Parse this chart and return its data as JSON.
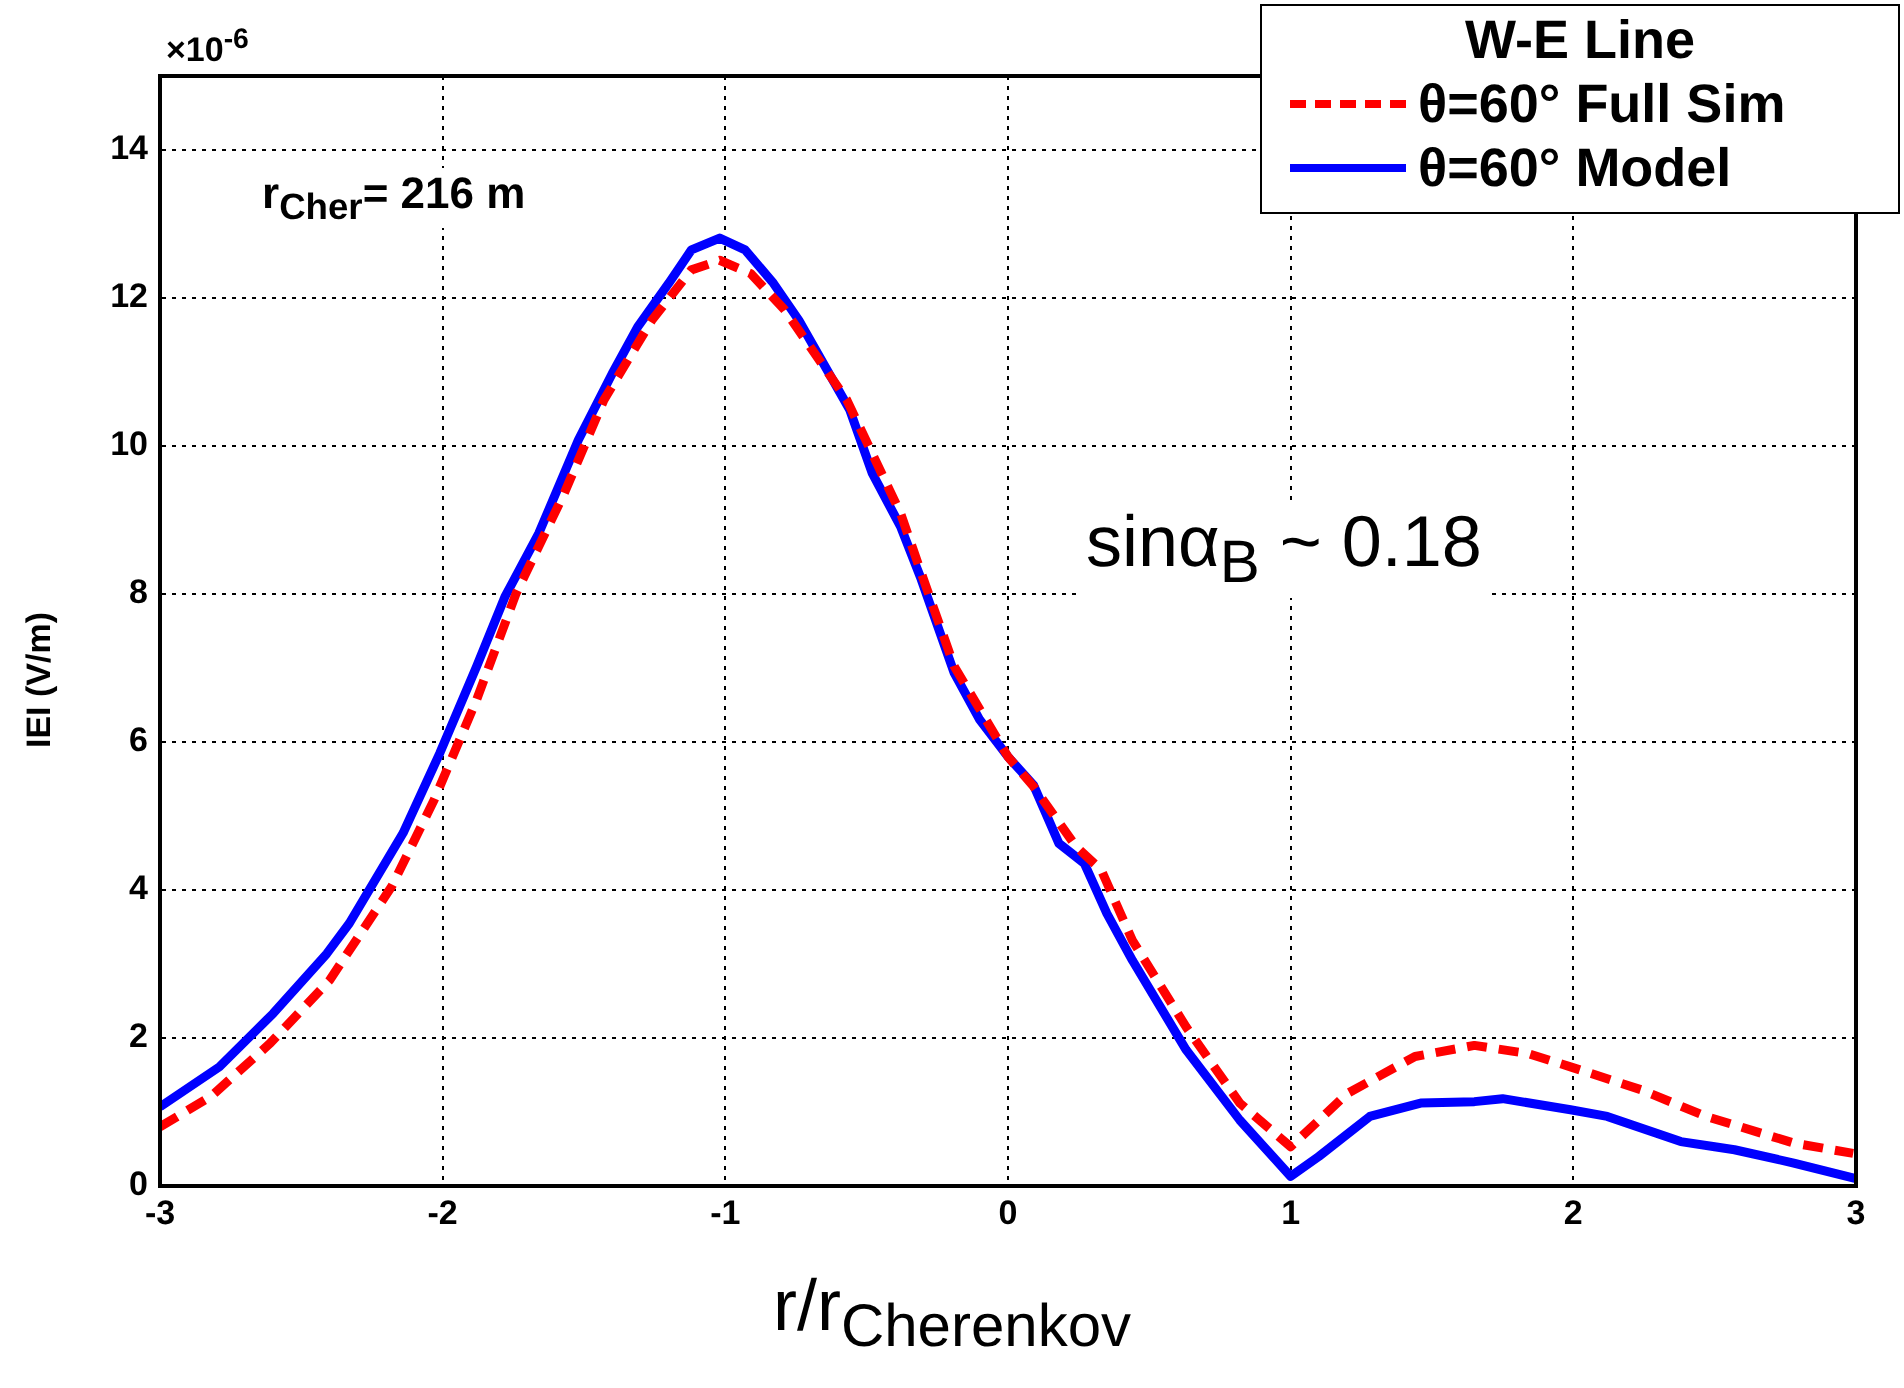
{
  "chart_data": {
    "type": "line",
    "xlabel": "r/r$_{Cherenkov}$",
    "ylabel": "IEI (V/m)",
    "legend_title": "W-E Line",
    "legend": "top right",
    "grid": true,
    "marker": "none",
    "xlim": [
      -3,
      3
    ],
    "xticks": [
      -3,
      -2,
      -1,
      0,
      1,
      2,
      3
    ],
    "ylim": [
      0,
      15
    ],
    "yticks": [
      0,
      2,
      4,
      6,
      8,
      10,
      12,
      14
    ],
    "annotations": [
      "×10$^{-6}$",
      "r$_{Cher}$= 216 m",
      "sinα$_{B}$ ~ 0.18"
    ],
    "series": [
      {
        "name": "θ=60° Full Sim",
        "color": "#ff0000",
        "line_style": "dashed",
        "x": [
          -3,
          -2.82,
          -2.61,
          -2.4,
          -2.18,
          -2.03,
          -1.88,
          -1.74,
          -1.57,
          -1.43,
          -1.26,
          -1.12,
          -1.02,
          -0.91,
          -0.79,
          -0.57,
          -0.38,
          -0.29,
          -0.19,
          0,
          0.09,
          0.24,
          0.33,
          0.44,
          0.63,
          0.82,
          1,
          1.2,
          1.44,
          1.65,
          1.84,
          1.99,
          2.24,
          2.47,
          2.78,
          2.99
        ],
        "values": [
          0.8,
          1.21,
          1.93,
          2.78,
          4.05,
          5.22,
          6.57,
          8.01,
          9.36,
          10.62,
          11.7,
          12.38,
          12.51,
          12.33,
          11.84,
          10.62,
          9.09,
          8.1,
          7.02,
          5.8,
          5.4,
          4.59,
          4.27,
          3.32,
          2.15,
          1.12,
          0.53,
          1.25,
          1.75,
          1.9,
          1.79,
          1.61,
          1.3,
          0.94,
          0.58,
          0.44
        ]
      },
      {
        "name": "θ=60° Model",
        "color": "#0000ff",
        "line_style": "solid",
        "x": [
          -3,
          -2.79,
          -2.6,
          -2.41,
          -2.33,
          -2.14,
          -2.01,
          -1.88,
          -1.78,
          -1.66,
          -1.52,
          -1.4,
          -1.31,
          -1.2,
          -1.12,
          -1.02,
          -0.93,
          -0.83,
          -0.74,
          -0.56,
          -0.48,
          -0.38,
          -0.31,
          -0.19,
          -0.1,
          0,
          0.09,
          0.18,
          0.27,
          0.35,
          0.44,
          0.63,
          0.82,
          1,
          1.1,
          1.28,
          1.46,
          1.65,
          1.75,
          1.99,
          2.12,
          2.38,
          2.5,
          2.57,
          2.78,
          3
        ],
        "values": [
          1.07,
          1.61,
          2.33,
          3.14,
          3.55,
          4.77,
          5.85,
          7.02,
          7.96,
          8.82,
          10.08,
          10.98,
          11.61,
          12.2,
          12.65,
          12.81,
          12.65,
          12.2,
          11.7,
          10.49,
          9.63,
          8.91,
          8.23,
          6.93,
          6.3,
          5.8,
          5.42,
          4.63,
          4.36,
          3.68,
          3.05,
          1.84,
          0.89,
          0.13,
          0.4,
          0.94,
          1.12,
          1.14,
          1.18,
          1.03,
          0.94,
          0.6,
          0.53,
          0.49,
          0.31,
          0.1
        ]
      }
    ]
  }
}
